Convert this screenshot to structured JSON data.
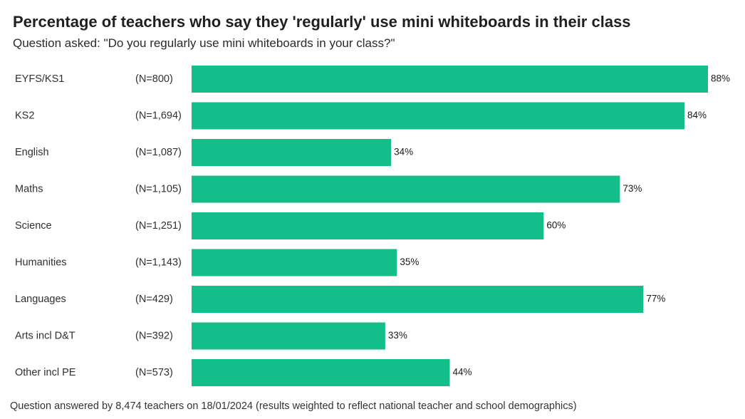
{
  "chart_data": {
    "type": "bar",
    "orientation": "horizontal",
    "title": "Percentage of teachers who say they 'regularly' use mini whiteboards in their class",
    "subtitle": "Question asked: \"Do you regularly use mini whiteboards in your class?\"",
    "categories": [
      "EYFS/KS1",
      "KS2",
      "English",
      "Maths",
      "Science",
      "Humanities",
      "Languages",
      "Arts incl D&T",
      "Other incl PE"
    ],
    "sample_sizes": [
      "(N=800)",
      "(N=1,694)",
      "(N=1,087)",
      "(N=1,105)",
      "(N=1,251)",
      "(N=1,143)",
      "(N=429)",
      "(N=392)",
      "(N=573)"
    ],
    "values": [
      88,
      84,
      34,
      73,
      60,
      35,
      77,
      33,
      44
    ],
    "value_labels": [
      "88%",
      "84%",
      "34%",
      "73%",
      "60%",
      "35%",
      "77%",
      "33%",
      "44%"
    ],
    "xlim": [
      0,
      88
    ],
    "grid": false,
    "legend": "none",
    "bar_color": "#13be8b",
    "footnote": "Question answered by 8,474 teachers on 18/01/2024 (results weighted to reflect national teacher and school demographics)"
  }
}
